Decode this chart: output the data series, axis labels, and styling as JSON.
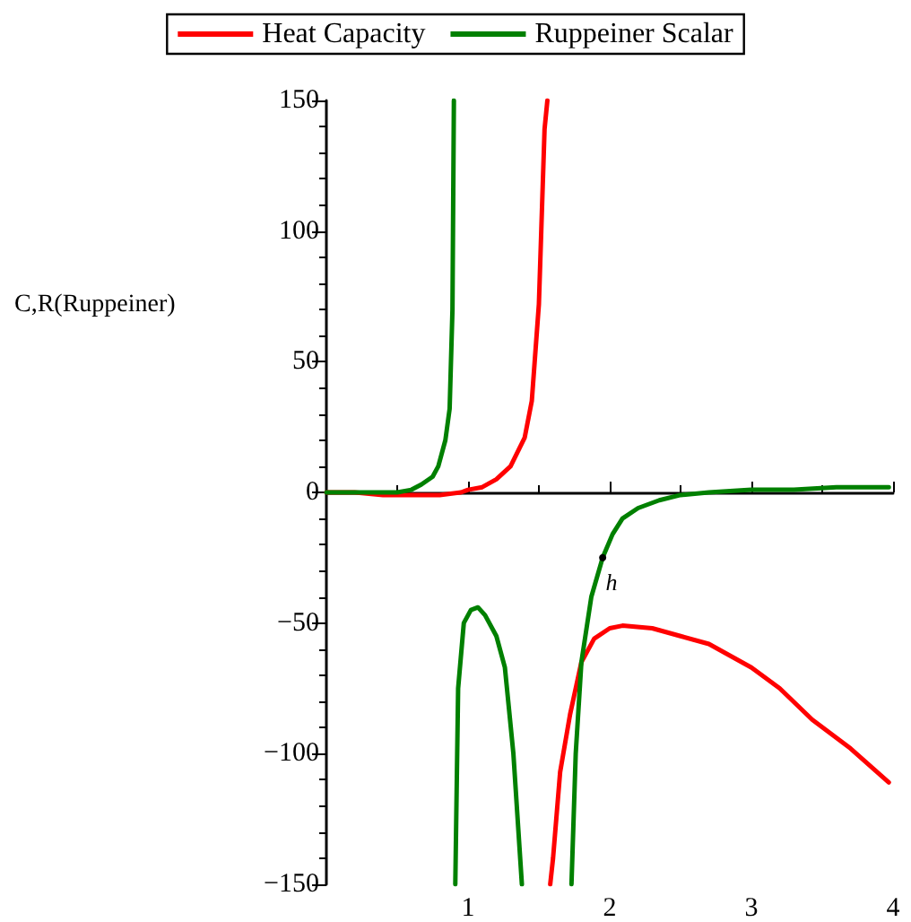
{
  "chart_data": {
    "type": "line",
    "ylabel": "C,R(Ruppeiner)",
    "xlim": [
      0,
      4
    ],
    "ylim": [
      -150,
      150
    ],
    "xticks": [
      1,
      2,
      3,
      4
    ],
    "yticks": [
      -150,
      -100,
      -50,
      0,
      50,
      100,
      150
    ],
    "legend": "top",
    "marker": "none",
    "line_style": "solid",
    "annotations": [
      {
        "text": "h",
        "x": 1.95,
        "y": -25
      }
    ],
    "series": [
      {
        "name": "Heat Capacity",
        "color": "#ff0000",
        "x": [
          0,
          0.2,
          0.4,
          0.6,
          0.8,
          0.95,
          1.0,
          1.1,
          1.2,
          1.3,
          1.4,
          1.45,
          1.5,
          1.54,
          1.56,
          1.57,
          1.58,
          1.6,
          1.65,
          1.72,
          1.8,
          1.89,
          2.0,
          2.09,
          2.3,
          2.5,
          2.7,
          3.0,
          3.2,
          3.43,
          3.7,
          3.97
        ],
        "values": [
          0,
          0,
          -1,
          -1,
          -1,
          0,
          1,
          2,
          5,
          10,
          21,
          35,
          72,
          139,
          150,
          null,
          -150,
          -140,
          -107,
          -85,
          -65,
          -56,
          -52,
          -51,
          -52,
          -55,
          -58,
          -67,
          -75,
          -87,
          -98,
          -111
        ]
      },
      {
        "name": "Ruppeiner Scalar",
        "color": "#008000",
        "x": [
          0,
          0.3,
          0.5,
          0.6,
          0.67,
          0.75,
          0.79,
          0.84,
          0.87,
          0.89,
          0.9,
          0.905,
          0.91,
          0.93,
          0.97,
          1.02,
          1.07,
          1.12,
          1.2,
          1.26,
          1.32,
          1.38,
          1.5,
          1.73,
          1.76,
          1.8,
          1.87,
          1.95,
          2.02,
          2.09,
          2.2,
          2.35,
          2.5,
          2.7,
          3.0,
          3.3,
          3.6,
          3.97
        ],
        "values": [
          0,
          0,
          0,
          1,
          3,
          6,
          10,
          20,
          32,
          70,
          150,
          null,
          -150,
          -75,
          -50,
          -45,
          -44,
          -47,
          -55,
          -67,
          -100,
          -150,
          null,
          -150,
          -100,
          -65,
          -40,
          -25,
          -16,
          -10,
          -6,
          -3,
          -1,
          0,
          1,
          1,
          2,
          2
        ]
      }
    ]
  }
}
